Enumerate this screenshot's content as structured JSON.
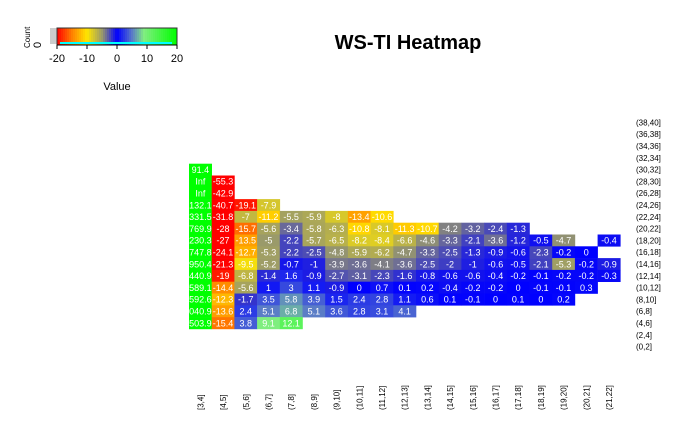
{
  "chart_data": {
    "type": "heatmap",
    "title": "WS-TI Heatmap",
    "x_categories": [
      "[3,4]",
      "[4,5]",
      "(5,6]",
      "(6,7]",
      "(7,8]",
      "(8,9]",
      "(9,10]",
      "(10,11]",
      "(11,12]",
      "(12,13]",
      "(13,14]",
      "(14,15]",
      "(15,16]",
      "(16,17]",
      "(17,18]",
      "(18,19]",
      "(19,20]",
      "(20,21]",
      "(21,22]"
    ],
    "y_categories": [
      "(38,40]",
      "(36,38]",
      "(34,36]",
      "(32,34]",
      "(30,32]",
      "(28,30]",
      "(26,28]",
      "(24,26]",
      "(22,24]",
      "(20,22]",
      "(18,20]",
      "(16,18]",
      "(14,16]",
      "(12,14]",
      "(10,12]",
      "(8,10]",
      "(6,8]",
      "(4,6]",
      "(2,4]",
      "(0,2]"
    ],
    "values": {
      "(30,32]": [
        "91.4"
      ],
      "(28,30]": [
        "Inf",
        -55.3
      ],
      "(26,28]": [
        "Inf",
        -42.9
      ],
      "(24,26]": [
        "132.1",
        -40.7,
        -19.1,
        -7.9
      ],
      "(22,24]": [
        "331.5",
        -31.8,
        -7,
        -11.2,
        -5.5,
        -5.9,
        -8,
        -13.4,
        -10.6
      ],
      "(20,22]": [
        "769.9",
        -28,
        -15.7,
        -5.6,
        -3.4,
        -5.8,
        -6.3,
        -10.8,
        -8.1,
        -11.3,
        -10.7,
        -4.2,
        -3.2,
        -2.4,
        -1.3
      ],
      "(18,20]": [
        "230.3",
        -27,
        -13.5,
        -5,
        -2.2,
        -5.7,
        -6.5,
        -8.2,
        -8.4,
        -6.6,
        -4.6,
        -3.3,
        -2.1,
        -3.6,
        -1.2,
        -0.5,
        -4.7,
        null,
        -0.4
      ],
      "(16,18]": [
        "747.8",
        -24.1,
        -12.7,
        -5.3,
        -2.2,
        -2.5,
        -4.8,
        -5.9,
        -6.2,
        -4.7,
        -3.3,
        -2.5,
        -1.3,
        -0.9,
        -0.6,
        -2.3,
        -0.2,
        0
      ],
      "(14,16]": [
        "950.4",
        -21.3,
        -9.5,
        -5.2,
        -0.7,
        -1,
        -3.9,
        -3.6,
        -4.1,
        -3.6,
        -2.5,
        -2,
        -1,
        -0.6,
        -0.5,
        -2.1,
        -5.3,
        -0.2,
        -0.9
      ],
      "(12,14]": [
        "440.9",
        -19,
        -6.8,
        -1.4,
        1.6,
        -0.9,
        -2.7,
        -3.1,
        -2.3,
        -1.6,
        -0.8,
        -0.6,
        -0.6,
        -0.4,
        -0.2,
        -0.1,
        -0.2,
        -0.2,
        -0.3
      ],
      "(10,12]": [
        "589.1",
        -14.4,
        -5.6,
        1,
        3,
        1.1,
        -0.9,
        0,
        0.7,
        0.1,
        0.2,
        -0.4,
        -0.2,
        -0.2,
        0,
        -0.1,
        -0.1,
        0.3
      ],
      "(8,10]": [
        "592.6",
        -12.3,
        -1.7,
        3.5,
        5.8,
        3.9,
        1.5,
        2.4,
        2.8,
        1.1,
        0.6,
        0.1,
        -0.1,
        0,
        0.1,
        0,
        0.2
      ],
      "(6,8]": [
        "040.9",
        -13.6,
        2.4,
        5.1,
        6.8,
        5.1,
        3.6,
        2.8,
        3.1,
        4.1
      ],
      "(4,6]": [
        "503.9",
        -15.4,
        3.8,
        9.1,
        12.1
      ]
    },
    "color_key": {
      "title": "",
      "xlabel": "Value",
      "ylabel": "Count",
      "y_tick": "0",
      "range": [
        -20,
        20
      ],
      "ticks": [
        "-20",
        "-10",
        "0",
        "10",
        "20"
      ],
      "colors": [
        "#ff0000",
        "#ff8000",
        "#ffe600",
        "#9a9a6a",
        "#0000ff",
        "#5a7ac8",
        "#80ee80",
        "#00ff00"
      ],
      "histogram_color": "#00ffff"
    }
  }
}
